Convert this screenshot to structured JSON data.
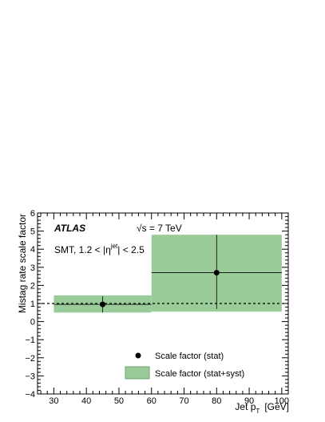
{
  "chart_data": {
    "type": "scatter",
    "experiment": "ATLAS",
    "energy_label": "√s = 7 TeV",
    "selection": {
      "prefix": "SMT, 1.2 < |η",
      "superscript": "jet",
      "suffix": "| < 2.5"
    },
    "xlabel": {
      "main": "Jet p",
      "sub": "T",
      "unit": "[GeV]"
    },
    "ylabel": "Mistag rate scale factor",
    "xlim": [
      25,
      102
    ],
    "ylim": [
      -4,
      6
    ],
    "xticks": [
      30,
      40,
      50,
      60,
      70,
      80,
      90,
      100
    ],
    "xtick_labels": [
      "30",
      "40",
      "50",
      "60",
      "70",
      "80",
      "90",
      "100"
    ],
    "yticks": [
      -4,
      -3,
      -2,
      -1,
      0,
      1,
      2,
      3,
      4,
      5,
      6
    ],
    "ytick_labels": [
      "−4",
      "−3",
      "−2",
      "−1",
      "0",
      "1",
      "2",
      "3",
      "4",
      "5",
      "6"
    ],
    "reference_line": 1,
    "bins": [
      {
        "x_low": 30,
        "x_high": 60,
        "x": 45,
        "value": 0.95,
        "stat_low": 0.5,
        "stat_high": 1.4,
        "band_low": 0.5,
        "band_high": 1.45
      },
      {
        "x_low": 60,
        "x_high": 100,
        "x": 80,
        "value": 2.7,
        "stat_low": 0.7,
        "stat_high": 4.8,
        "band_low": 0.55,
        "band_high": 4.8
      }
    ],
    "legend": {
      "stat_label": "Scale factor (stat)",
      "syst_label": "Scale factor (stat+syst)",
      "placement": "bottom-center"
    },
    "colors": {
      "band": "#99cc99",
      "band_edge": "#6aa66a",
      "marker": "#000000"
    }
  }
}
